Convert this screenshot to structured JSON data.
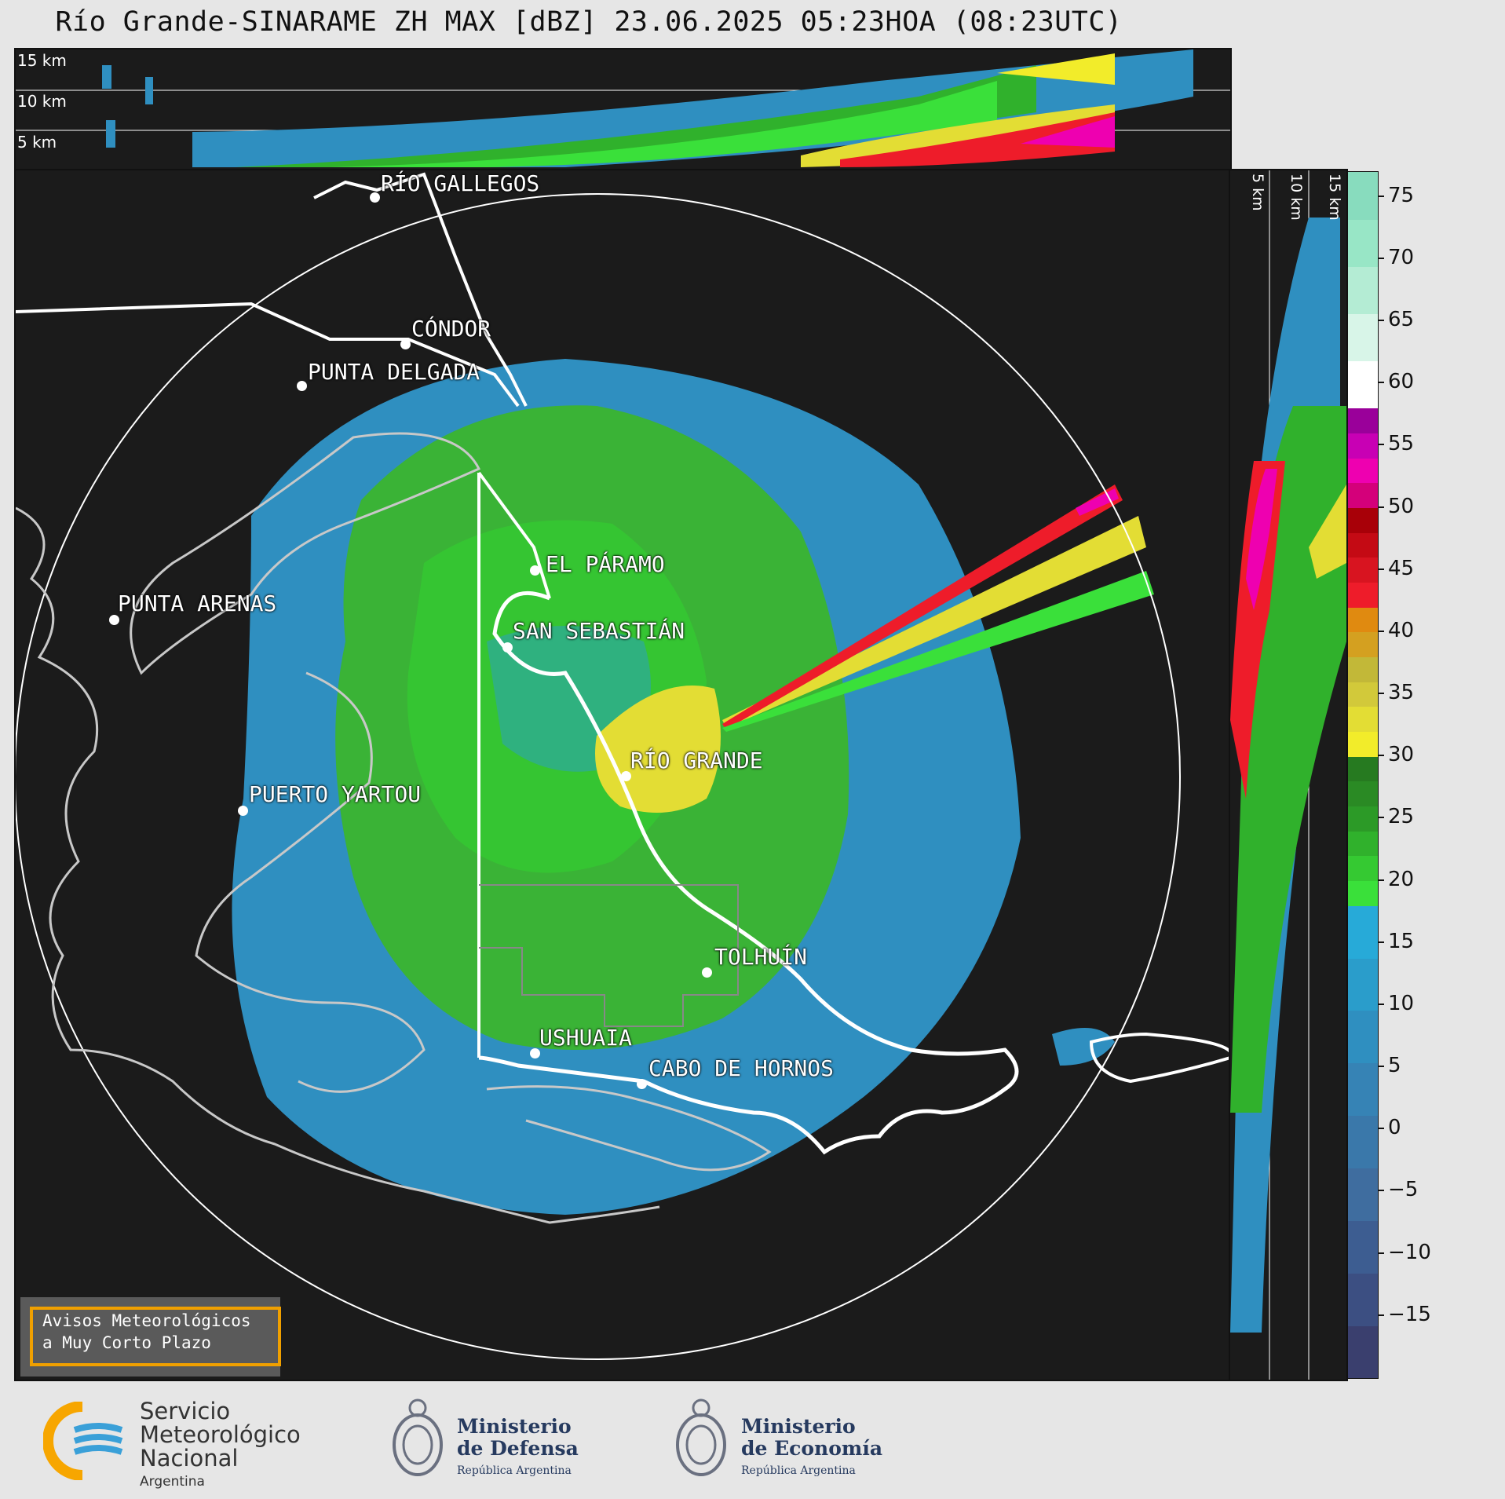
{
  "title": "Río Grande-SINARAME ZH MAX [dBZ] 23.06.2025 05:23HOA (08:23UTC)",
  "top_panel": {
    "height_labels": [
      "15 km",
      "10 km",
      "5 km"
    ]
  },
  "side_panel": {
    "height_labels": [
      "5 km",
      "10 km",
      "15 km"
    ]
  },
  "cities": [
    {
      "id": "rio-gallegos",
      "name": "RÍO GALLEGOS"
    },
    {
      "id": "condor",
      "name": "CÓNDOR"
    },
    {
      "id": "punta-delgada",
      "name": "PUNTA DELGADA"
    },
    {
      "id": "el-paramo",
      "name": "EL PÁRAMO"
    },
    {
      "id": "punta-arenas",
      "name": "PUNTA ARENAS"
    },
    {
      "id": "san-sebastian",
      "name": "SAN SEBASTIÁN"
    },
    {
      "id": "rio-grande",
      "name": "RÍO GRANDE"
    },
    {
      "id": "puerto-yartou",
      "name": "PUERTO YARTOU"
    },
    {
      "id": "tolhuin",
      "name": "TOLHUÍN"
    },
    {
      "id": "ushuaia",
      "name": "USHUAIA"
    },
    {
      "id": "cabo-de-hornos",
      "name": "CABO DE HORNOS"
    }
  ],
  "colorbar": {
    "unit": "dBZ",
    "min": -20,
    "max": 77,
    "ticks": [
      "75",
      "70",
      "65",
      "60",
      "55",
      "50",
      "45",
      "40",
      "35",
      "30",
      "25",
      "20",
      "15",
      "10",
      "5",
      "0",
      "−5",
      "−10",
      "−15"
    ],
    "tick_values": [
      75,
      70,
      65,
      60,
      55,
      50,
      45,
      40,
      35,
      30,
      25,
      20,
      15,
      10,
      5,
      0,
      -5,
      -10,
      -15
    ],
    "bands": [
      {
        "from": -20,
        "to": 18,
        "colors": [
          "#3a3f6e",
          "#3c4f82",
          "#3d5d91",
          "#3f6d9f",
          "#3a78aa",
          "#3683b5",
          "#2f8fc0",
          "#2a9dcb",
          "#27aad8"
        ]
      },
      {
        "from": 18,
        "to": 30,
        "colors": [
          "#3ae03a",
          "#35c932",
          "#30b12c",
          "#2c9a27",
          "#2a8a24",
          "#267a20"
        ]
      },
      {
        "from": 30,
        "to": 42,
        "colors": [
          "#f2ec2a",
          "#e3dd34",
          "#d2c93a",
          "#c2b838",
          "#d4a020",
          "#e08a10"
        ]
      },
      {
        "from": 42,
        "to": 50,
        "colors": [
          "#ee1c2a",
          "#d81420",
          "#c40a14",
          "#a80008"
        ]
      },
      {
        "from": 50,
        "to": 58,
        "colors": [
          "#d4007a",
          "#ee00b0",
          "#c800b4",
          "#9a009a"
        ]
      },
      {
        "from": 58,
        "to": 77,
        "colors": [
          "#ffffff",
          "#d8f5e8",
          "#b4ecd4",
          "#98e6c6",
          "#88dcbe"
        ]
      }
    ]
  },
  "avisos": {
    "line1": "Avisos Meteorológicos",
    "line2": "a Muy Corto Plazo"
  },
  "logos": {
    "smn": {
      "line1": "Servicio",
      "line2": "Meteorológico",
      "line3": "Nacional",
      "line4": "Argentina"
    },
    "defensa": {
      "line1": "Ministerio",
      "line2": "de Defensa",
      "line3": "República Argentina"
    },
    "economia": {
      "line1": "Ministerio",
      "line2": "de Economía",
      "line3": "República Argentina"
    }
  },
  "colors": {
    "accent": "#f0a000",
    "background": "#1b1b1b"
  }
}
